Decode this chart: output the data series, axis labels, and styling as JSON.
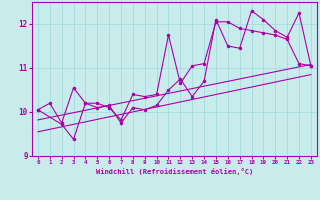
{
  "xlabel": "Windchill (Refroidissement éolien,°C)",
  "xlim": [
    -0.5,
    23.5
  ],
  "ylim": [
    9,
    12.5
  ],
  "yticks": [
    9,
    10,
    11,
    12
  ],
  "xticks": [
    0,
    1,
    2,
    3,
    4,
    5,
    6,
    7,
    8,
    9,
    10,
    11,
    12,
    13,
    14,
    15,
    16,
    17,
    18,
    19,
    20,
    21,
    22,
    23
  ],
  "bg_color": "#c8ecec",
  "grid_color": "#aadddd",
  "line_color": "#aa00aa",
  "curve1_x": [
    0,
    1,
    2,
    3,
    4,
    5,
    6,
    7,
    8,
    9,
    10,
    11,
    12,
    13,
    14,
    15,
    16,
    17,
    18,
    19,
    20,
    21,
    22,
    23
  ],
  "curve1_y": [
    10.05,
    10.2,
    9.75,
    10.55,
    10.2,
    10.2,
    10.1,
    9.82,
    10.4,
    10.35,
    10.4,
    11.75,
    10.65,
    11.05,
    11.1,
    12.05,
    12.05,
    11.9,
    11.85,
    11.8,
    11.75,
    11.65,
    11.1,
    11.05
  ],
  "curve2_x": [
    0,
    2,
    3,
    4,
    5,
    6,
    7,
    8,
    9,
    10,
    11,
    12,
    13,
    14,
    15,
    16,
    17,
    18,
    19,
    20,
    21,
    22,
    23
  ],
  "curve2_y": [
    10.05,
    9.72,
    9.38,
    10.2,
    10.1,
    10.15,
    9.75,
    10.1,
    10.05,
    10.15,
    10.5,
    10.75,
    10.35,
    10.7,
    12.1,
    11.5,
    11.45,
    12.3,
    12.1,
    11.85,
    11.7,
    12.25,
    11.05
  ],
  "line1_x": [
    0,
    23
  ],
  "line1_y": [
    9.55,
    10.85
  ],
  "line2_x": [
    0,
    23
  ],
  "line2_y": [
    9.82,
    11.08
  ]
}
